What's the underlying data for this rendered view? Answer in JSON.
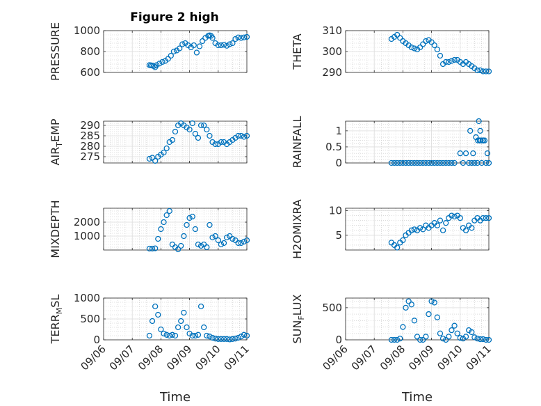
{
  "figure": {
    "title": "Figure 2 high",
    "color": "#0072BD"
  },
  "chart_data": [
    {
      "type": "scatter",
      "id": "pressure",
      "title": "Figure 2 high",
      "ylabel": "PRESSURE",
      "ylabel_sub": "",
      "ylabel_tail": "",
      "xlabel": "",
      "ylim": [
        600,
        1000
      ],
      "yticks": [
        600,
        800,
        1000
      ],
      "xlim": [
        "09/06",
        "09/11"
      ],
      "grid": true,
      "show_xticklabels": false,
      "series": [
        {
          "x": [
            1.6,
            1.65,
            1.7,
            1.75,
            1.8,
            1.85,
            1.95,
            2.05,
            2.15,
            2.25,
            2.35,
            2.45,
            2.55,
            2.65,
            2.75,
            2.85,
            2.95,
            3.05,
            3.15,
            3.25,
            3.35,
            3.45,
            3.55,
            3.65,
            3.7,
            3.75,
            3.8,
            3.9,
            4.0,
            4.1,
            4.2,
            4.3,
            4.4,
            4.5,
            4.6,
            4.7,
            4.8,
            4.9,
            5.0
          ],
          "y": [
            670,
            668,
            665,
            660,
            650,
            670,
            685,
            700,
            710,
            730,
            760,
            800,
            810,
            830,
            870,
            880,
            860,
            840,
            860,
            790,
            850,
            900,
            930,
            950,
            955,
            950,
            930,
            880,
            860,
            860,
            865,
            855,
            870,
            880,
            920,
            935,
            930,
            935,
            940
          ]
        }
      ]
    },
    {
      "type": "scatter",
      "id": "theta",
      "ylabel": "THETA",
      "ylabel_sub": "",
      "ylabel_tail": "",
      "xlabel": "",
      "ylim": [
        290,
        310
      ],
      "yticks": [
        290,
        300,
        310
      ],
      "xlim": [
        "09/06",
        "09/11"
      ],
      "grid": true,
      "show_xticklabels": false,
      "series": [
        {
          "x": [
            1.6,
            1.7,
            1.8,
            1.9,
            2.0,
            2.1,
            2.2,
            2.3,
            2.4,
            2.5,
            2.6,
            2.7,
            2.8,
            2.9,
            3.0,
            3.1,
            3.2,
            3.3,
            3.4,
            3.5,
            3.6,
            3.7,
            3.8,
            3.9,
            4.0,
            4.1,
            4.2,
            4.3,
            4.4,
            4.5,
            4.6,
            4.7,
            4.8,
            4.9,
            5.0
          ],
          "y": [
            306,
            307,
            308,
            306.5,
            305,
            304,
            303,
            302,
            301.5,
            301,
            302,
            303.5,
            305,
            305.5,
            304.5,
            303,
            301,
            298,
            294,
            295,
            295,
            295.5,
            296,
            296,
            295,
            294,
            295,
            294,
            293,
            292,
            291,
            291,
            290.5,
            290.5,
            290.5
          ]
        }
      ]
    },
    {
      "type": "scatter",
      "id": "air_temp",
      "ylabel": "AIR",
      "ylabel_sub": "T",
      "ylabel_tail": "EMP",
      "xlabel": "",
      "ylim": [
        272,
        292
      ],
      "yticks": [
        275,
        280,
        285,
        290
      ],
      "xlim": [
        "09/06",
        "09/11"
      ],
      "grid": true,
      "show_xticklabels": false,
      "series": [
        {
          "x": [
            1.6,
            1.7,
            1.8,
            1.9,
            2.0,
            2.1,
            2.2,
            2.3,
            2.4,
            2.5,
            2.6,
            2.7,
            2.8,
            2.9,
            3.0,
            3.1,
            3.2,
            3.3,
            3.4,
            3.5,
            3.6,
            3.7,
            3.8,
            3.9,
            4.0,
            4.1,
            4.2,
            4.3,
            4.4,
            4.5,
            4.6,
            4.7,
            4.8,
            4.9,
            5.0
          ],
          "y": [
            274,
            274.5,
            273,
            275,
            276,
            277,
            279,
            282,
            283,
            287,
            290,
            291,
            290,
            289,
            288,
            291,
            286,
            284,
            290,
            290,
            288,
            285,
            282,
            281,
            281,
            282,
            282,
            281,
            282,
            283,
            284,
            285,
            285,
            284.5,
            285
          ]
        }
      ]
    },
    {
      "type": "scatter",
      "id": "rainfall",
      "ylabel": "RAINFALL",
      "ylabel_sub": "",
      "ylabel_tail": "",
      "xlabel": "",
      "ylim": [
        0,
        1.3
      ],
      "yticks": [
        0,
        0.5,
        1
      ],
      "xlim": [
        "09/06",
        "09/11"
      ],
      "grid": true,
      "show_xticklabels": false,
      "series": [
        {
          "x": [
            1.6,
            1.7,
            1.8,
            1.9,
            2.0,
            2.1,
            2.2,
            2.3,
            2.4,
            2.5,
            2.6,
            2.7,
            2.8,
            2.9,
            3.0,
            3.1,
            3.2,
            3.3,
            3.4,
            3.5,
            3.6,
            3.7,
            3.8,
            4.0,
            4.1,
            4.2,
            4.3,
            4.35,
            4.4,
            4.45,
            4.5,
            4.55,
            4.6,
            4.62,
            4.65,
            4.68,
            4.7,
            4.72,
            4.75,
            4.78,
            4.8,
            4.85,
            4.9,
            4.95,
            5.0
          ],
          "y": [
            0,
            0,
            0,
            0,
            0,
            0,
            0,
            0,
            0,
            0,
            0,
            0,
            0,
            0,
            0,
            0,
            0,
            0,
            0,
            0,
            0,
            0,
            0,
            0.3,
            0,
            0.3,
            0,
            1.0,
            0,
            0.3,
            0,
            0.8,
            0,
            0.7,
            1.3,
            0.7,
            1.0,
            0.7,
            0,
            0.7,
            0.7,
            0.7,
            0,
            0.3,
            0
          ]
        }
      ]
    },
    {
      "type": "scatter",
      "id": "mixdepth",
      "ylabel": "MIXDEPTH",
      "ylabel_sub": "",
      "ylabel_tail": "",
      "xlabel": "",
      "ylim": [
        0,
        3000
      ],
      "yticks": [
        1000,
        2000
      ],
      "xlim": [
        "09/06",
        "09/11"
      ],
      "grid": true,
      "show_xticklabels": false,
      "series": [
        {
          "x": [
            1.6,
            1.7,
            1.8,
            1.9,
            2.0,
            2.1,
            2.2,
            2.3,
            2.4,
            2.5,
            2.6,
            2.7,
            2.8,
            2.9,
            3.0,
            3.1,
            3.2,
            3.3,
            3.4,
            3.5,
            3.6,
            3.7,
            3.8,
            3.9,
            4.0,
            4.1,
            4.2,
            4.3,
            4.4,
            4.5,
            4.6,
            4.7,
            4.8,
            4.9,
            5.0
          ],
          "y": [
            100,
            100,
            120,
            800,
            1500,
            2000,
            2500,
            2800,
            400,
            200,
            50,
            300,
            1000,
            1800,
            2300,
            2400,
            1500,
            400,
            300,
            400,
            200,
            1800,
            900,
            1000,
            700,
            400,
            500,
            900,
            1000,
            800,
            700,
            500,
            500,
            600,
            700
          ]
        }
      ]
    },
    {
      "type": "scatter",
      "id": "h2omixra",
      "ylabel": "H2OMIXRA",
      "ylabel_sub": "",
      "ylabel_tail": "",
      "xlabel": "",
      "ylim": [
        2,
        10.5
      ],
      "yticks": [
        5,
        10
      ],
      "xlim": [
        "09/06",
        "09/11"
      ],
      "grid": true,
      "show_xticklabels": false,
      "series": [
        {
          "x": [
            1.6,
            1.7,
            1.8,
            1.9,
            2.0,
            2.1,
            2.2,
            2.3,
            2.4,
            2.5,
            2.6,
            2.7,
            2.8,
            2.9,
            3.0,
            3.1,
            3.2,
            3.3,
            3.4,
            3.5,
            3.6,
            3.7,
            3.8,
            3.9,
            4.0,
            4.1,
            4.2,
            4.3,
            4.4,
            4.5,
            4.6,
            4.7,
            4.8,
            4.9,
            5.0
          ],
          "y": [
            3.5,
            3.0,
            2.5,
            3.5,
            4.0,
            5.0,
            5.5,
            6.0,
            6.2,
            6.0,
            6.5,
            6.2,
            7.0,
            6.5,
            7.0,
            7.5,
            7.0,
            8.0,
            6.0,
            7.5,
            8.5,
            9.0,
            8.8,
            9.0,
            8.5,
            6.5,
            6.0,
            7.0,
            6.5,
            8.0,
            8.5,
            8.0,
            8.5,
            8.5,
            8.5
          ]
        }
      ]
    },
    {
      "type": "scatter",
      "id": "terr_msl",
      "ylabel": "TERR",
      "ylabel_sub": "M",
      "ylabel_tail": "SL",
      "xlabel": "Time",
      "ylim": [
        0,
        1000
      ],
      "yticks": [
        0,
        500,
        1000
      ],
      "xlim": [
        "09/06",
        "09/11"
      ],
      "grid": true,
      "show_xticklabels": true,
      "xticklabels": [
        "09/06",
        "09/07",
        "09/08",
        "09/09",
        "09/10",
        "09/11"
      ],
      "series": [
        {
          "x": [
            1.6,
            1.7,
            1.8,
            1.9,
            2.0,
            2.1,
            2.2,
            2.3,
            2.4,
            2.5,
            2.6,
            2.7,
            2.8,
            2.9,
            3.0,
            3.1,
            3.2,
            3.3,
            3.4,
            3.5,
            3.6,
            3.7,
            3.8,
            3.9,
            4.0,
            4.1,
            4.2,
            4.3,
            4.4,
            4.5,
            4.6,
            4.7,
            4.8,
            4.9,
            5.0
          ],
          "y": [
            100,
            450,
            800,
            600,
            250,
            150,
            120,
            100,
            120,
            100,
            300,
            450,
            650,
            300,
            150,
            100,
            100,
            120,
            800,
            300,
            100,
            80,
            50,
            30,
            20,
            20,
            20,
            20,
            10,
            20,
            30,
            50,
            80,
            120,
            100
          ]
        }
      ]
    },
    {
      "type": "scatter",
      "id": "sun_flux",
      "ylabel": "SUN",
      "ylabel_sub": "F",
      "ylabel_tail": "LUX",
      "xlabel": "Time",
      "ylim": [
        0,
        650
      ],
      "yticks": [
        0,
        500
      ],
      "xlim": [
        "09/06",
        "09/11"
      ],
      "grid": true,
      "show_xticklabels": true,
      "xticklabels": [
        "09/06",
        "09/07",
        "09/08",
        "09/09",
        "09/10",
        "09/11"
      ],
      "series": [
        {
          "x": [
            1.6,
            1.7,
            1.8,
            1.9,
            2.0,
            2.1,
            2.2,
            2.3,
            2.4,
            2.5,
            2.6,
            2.7,
            2.8,
            2.9,
            3.0,
            3.1,
            3.2,
            3.3,
            3.4,
            3.5,
            3.6,
            3.7,
            3.8,
            3.9,
            4.0,
            4.1,
            4.2,
            4.3,
            4.4,
            4.5,
            4.6,
            4.7,
            4.8,
            4.9,
            5.0
          ],
          "y": [
            0,
            0,
            0,
            20,
            200,
            500,
            600,
            550,
            300,
            50,
            0,
            0,
            50,
            400,
            600,
            580,
            350,
            100,
            20,
            0,
            50,
            150,
            220,
            100,
            30,
            20,
            50,
            150,
            120,
            40,
            20,
            10,
            10,
            0,
            0
          ]
        }
      ]
    }
  ]
}
